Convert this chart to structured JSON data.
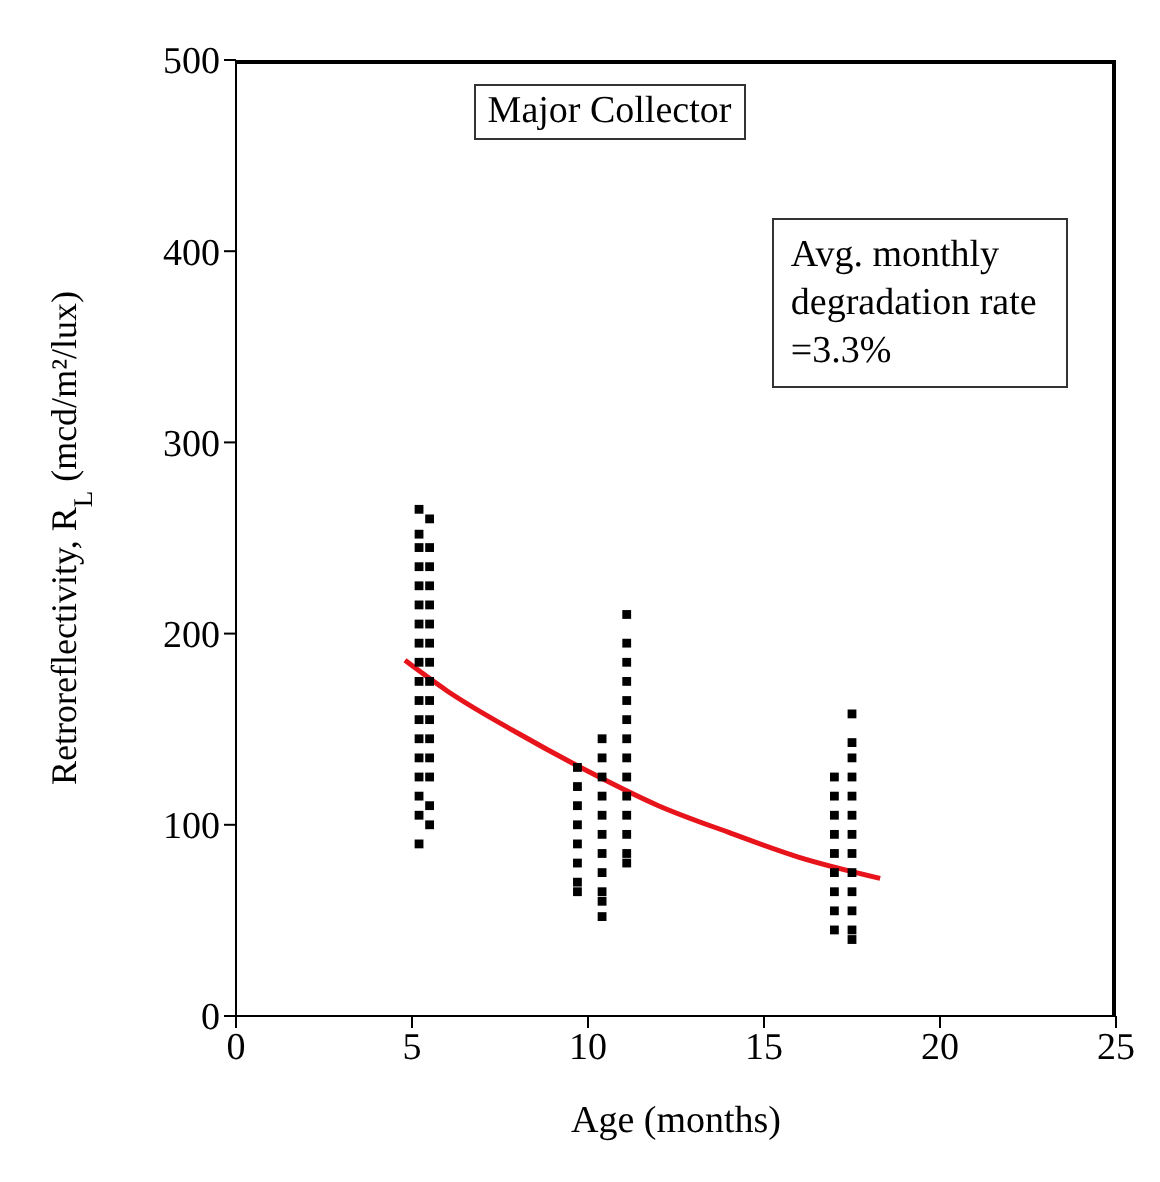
{
  "chart_data": {
    "type": "scatter",
    "xlabel": "Age (months)",
    "ylabel": "Retroreflectivity, R$_{L}$ (mcd/m²/lux)",
    "annotations": [
      "Major Collector",
      "Avg. monthly degradation rate =3.3%"
    ],
    "xlim": [
      0,
      25
    ],
    "xticks": [
      0,
      5,
      10,
      15,
      20,
      25
    ],
    "ylim": [
      0,
      500
    ],
    "yticks": [
      0,
      100,
      200,
      300,
      400,
      500
    ],
    "grid": false,
    "marker": "square",
    "series": [
      {
        "color": "#000000",
        "x": [
          5.2,
          5.2,
          5.2,
          5.2,
          5.2,
          5.2,
          5.2,
          5.2,
          5.2,
          5.2,
          5.2,
          5.2,
          5.2,
          5.2,
          5.2,
          5.2,
          5.2,
          5.2,
          5.5,
          5.5,
          5.5,
          5.5,
          5.5,
          5.5,
          5.5,
          5.5,
          5.5,
          5.5,
          5.5,
          5.5,
          5.5,
          5.5,
          5.5,
          5.5,
          9.7,
          9.7,
          9.7,
          9.7,
          9.7,
          9.7,
          9.7,
          9.7,
          10.4,
          10.4,
          10.4,
          10.4,
          10.4,
          10.4,
          10.4,
          10.4,
          10.4,
          10.4,
          10.4,
          11.1,
          11.1,
          11.1,
          11.1,
          11.1,
          11.1,
          11.1,
          11.1,
          11.1,
          11.1,
          11.1,
          11.1,
          11.1,
          11.1,
          17.0,
          17.0,
          17.0,
          17.0,
          17.0,
          17.0,
          17.0,
          17.0,
          17.0,
          17.5,
          17.5,
          17.5,
          17.5,
          17.5,
          17.5,
          17.5,
          17.5,
          17.5,
          17.5,
          17.5,
          17.5,
          17.5
        ],
        "values": [
          265,
          252,
          245,
          235,
          225,
          215,
          205,
          195,
          185,
          175,
          165,
          155,
          145,
          135,
          125,
          115,
          105,
          90,
          260,
          245,
          235,
          225,
          215,
          205,
          195,
          185,
          175,
          165,
          155,
          145,
          135,
          125,
          110,
          100,
          130,
          120,
          110,
          100,
          90,
          80,
          70,
          65,
          145,
          135,
          125,
          115,
          105,
          95,
          85,
          75,
          65,
          60,
          52,
          210,
          195,
          185,
          175,
          165,
          155,
          145,
          135,
          125,
          115,
          105,
          95,
          85,
          80,
          125,
          115,
          105,
          95,
          85,
          75,
          65,
          55,
          45,
          158,
          143,
          135,
          125,
          115,
          105,
          95,
          85,
          75,
          65,
          55,
          45,
          40
        ]
      },
      {
        "type": "line",
        "color": "#e8141c",
        "marker": "none",
        "line_style": "solid",
        "x": [
          4.8,
          6,
          8,
          10,
          12,
          14,
          16,
          18.3
        ],
        "values": [
          186,
          170,
          148,
          128,
          110,
          96,
          83,
          72
        ]
      }
    ]
  }
}
